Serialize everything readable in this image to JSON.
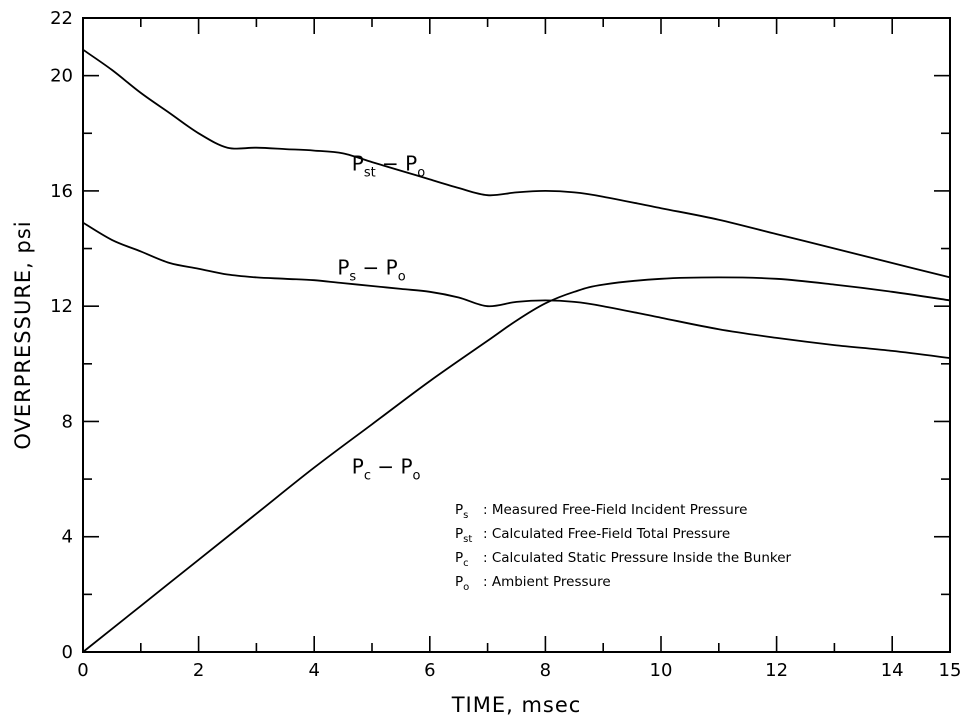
{
  "chart_data": {
    "type": "line",
    "xlabel": "TIME, msec",
    "ylabel": "OVERPRESSURE, psi",
    "xlim": [
      0,
      15
    ],
    "ylim": [
      0,
      22
    ],
    "x_ticks": [
      0,
      2,
      4,
      6,
      8,
      10,
      12,
      14,
      15
    ],
    "y_ticks": [
      0,
      4,
      8,
      12,
      16,
      20,
      22
    ],
    "grid": false,
    "series": [
      {
        "id": "pst",
        "label_main": "P",
        "label_sub": "st",
        "label_rest": " − P",
        "label_sub2": "o",
        "x": [
          0,
          0.5,
          1,
          1.5,
          2,
          2.5,
          3,
          3.5,
          4,
          4.5,
          5,
          5.5,
          6,
          6.5,
          7,
          7.5,
          8,
          8.5,
          9,
          10,
          11,
          12,
          13,
          14,
          15
        ],
        "y": [
          20.9,
          20.2,
          19.4,
          18.7,
          18.0,
          17.5,
          17.5,
          17.45,
          17.4,
          17.3,
          17.0,
          16.7,
          16.4,
          16.1,
          15.85,
          15.95,
          16.0,
          15.95,
          15.8,
          15.4,
          15.0,
          14.5,
          14.0,
          13.5,
          13.0
        ]
      },
      {
        "id": "ps",
        "label_main": "P",
        "label_sub": "s",
        "label_rest": " − P",
        "label_sub2": "o",
        "x": [
          0,
          0.5,
          1,
          1.5,
          2,
          2.5,
          3,
          3.5,
          4,
          4.5,
          5,
          5.5,
          6,
          6.5,
          7,
          7.5,
          8,
          8.5,
          9,
          10,
          11,
          12,
          13,
          14,
          15
        ],
        "y": [
          14.9,
          14.3,
          13.9,
          13.5,
          13.3,
          13.1,
          13.0,
          12.95,
          12.9,
          12.8,
          12.7,
          12.6,
          12.5,
          12.3,
          12.0,
          12.15,
          12.2,
          12.15,
          12.0,
          11.6,
          11.2,
          10.9,
          10.65,
          10.45,
          10.2
        ]
      },
      {
        "id": "pc",
        "label_main": "P",
        "label_sub": "c",
        "label_rest": " − P",
        "label_sub2": "o",
        "x": [
          0,
          1,
          2,
          3,
          4,
          5,
          6,
          7,
          7.5,
          8,
          8.5,
          9,
          10,
          11,
          12,
          13,
          14,
          15
        ],
        "y": [
          0,
          1.6,
          3.2,
          4.8,
          6.4,
          7.9,
          9.4,
          10.8,
          11.5,
          12.1,
          12.5,
          12.75,
          12.95,
          13.0,
          12.95,
          12.75,
          12.5,
          12.2
        ]
      }
    ],
    "legend": {
      "placement": "bottom-right",
      "items": [
        {
          "symbol": "P",
          "sub": "s",
          "text": ": Measured Free-Field Incident Pressure"
        },
        {
          "symbol": "P",
          "sub": "st",
          "text": ": Calculated Free-Field Total Pressure"
        },
        {
          "symbol": "P",
          "sub": "c",
          "text": ": Calculated Static Pressure Inside the Bunker"
        },
        {
          "symbol": "P",
          "sub": "o",
          "text": ": Ambient Pressure"
        }
      ]
    }
  }
}
